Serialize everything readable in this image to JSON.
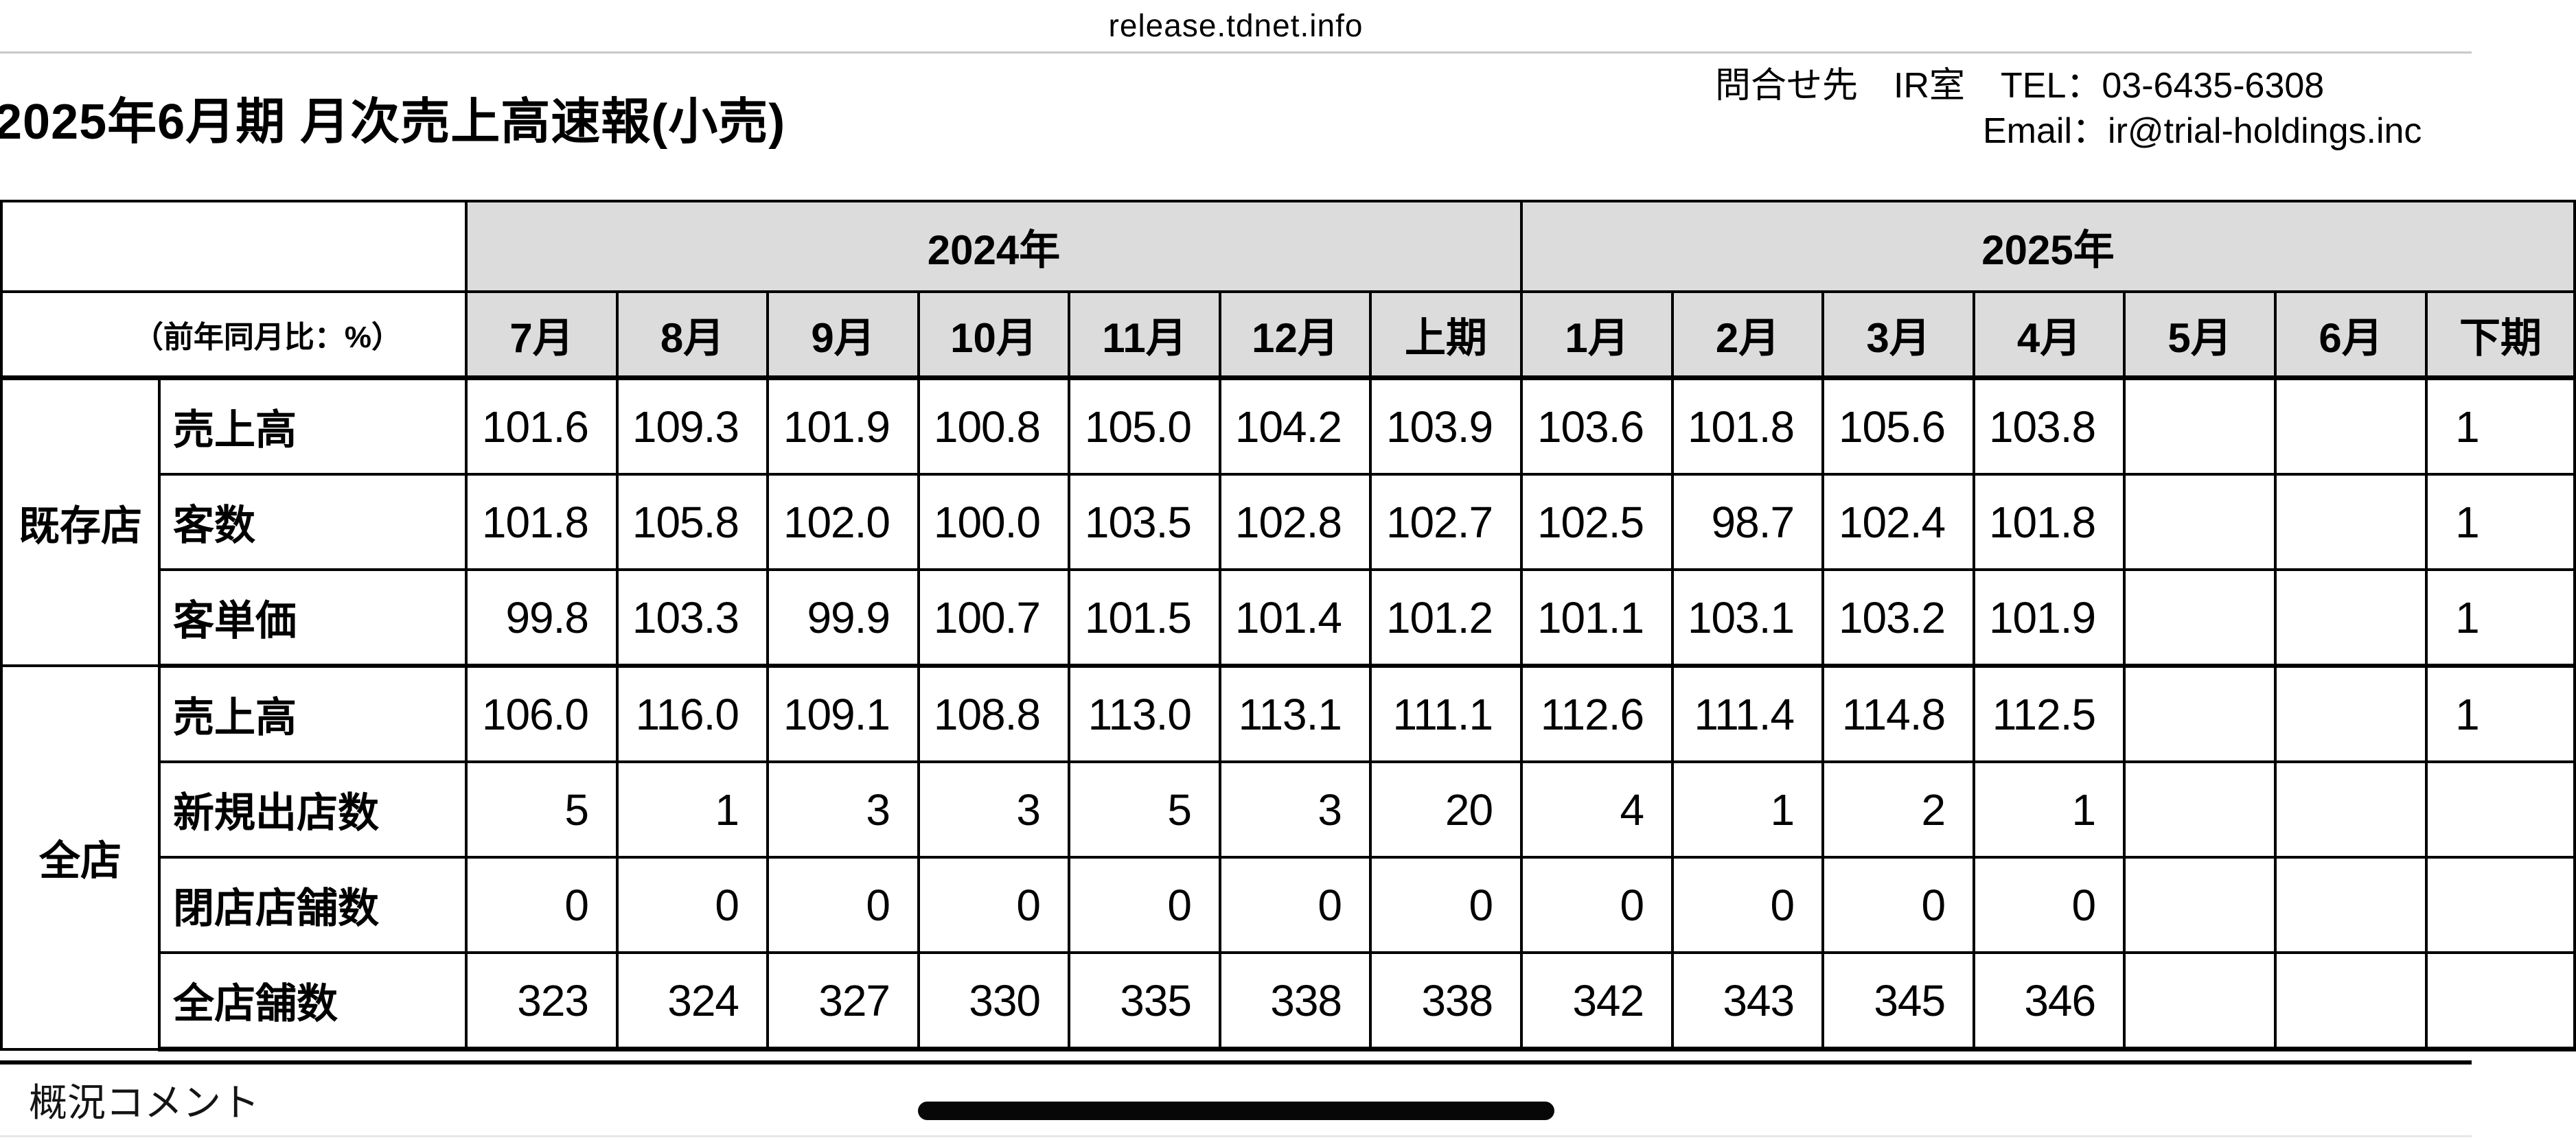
{
  "browser": {
    "url_label": "release.tdnet.info"
  },
  "document": {
    "title": "2025年6月期 月次売上高速報(小売)",
    "contact_line1": "問合せ先　IR室　TEL：03-6435-6308",
    "contact_line2": "Email：ir@trial-holdings.inc",
    "comment_heading": "概況コメント"
  },
  "table": {
    "note_label": "（前年同月比：%）",
    "year_groups": [
      {
        "label": "2024年",
        "span": 7
      },
      {
        "label": "2025年",
        "span": 7
      }
    ],
    "months": [
      "7月",
      "8月",
      "9月",
      "10月",
      "11月",
      "12月",
      "上期",
      "1月",
      "2月",
      "3月",
      "4月",
      "5月",
      "6月",
      "下期"
    ],
    "row_groups": [
      {
        "label": "既存店",
        "rows": [
          {
            "label": "売上高",
            "values": [
              "101.6",
              "109.3",
              "101.9",
              "100.8",
              "105.0",
              "104.2",
              "103.9",
              "103.6",
              "101.8",
              "105.6",
              "103.8",
              "",
              "",
              "1"
            ]
          },
          {
            "label": "客数",
            "values": [
              "101.8",
              "105.8",
              "102.0",
              "100.0",
              "103.5",
              "102.8",
              "102.7",
              "102.5",
              "98.7",
              "102.4",
              "101.8",
              "",
              "",
              "1"
            ]
          },
          {
            "label": "客単価",
            "values": [
              "99.8",
              "103.3",
              "99.9",
              "100.7",
              "101.5",
              "101.4",
              "101.2",
              "101.1",
              "103.1",
              "103.2",
              "101.9",
              "",
              "",
              "1"
            ]
          }
        ]
      },
      {
        "label": "全店",
        "rows": [
          {
            "label": "売上高",
            "values": [
              "106.0",
              "116.0",
              "109.1",
              "108.8",
              "113.0",
              "113.1",
              "111.1",
              "112.6",
              "111.4",
              "114.8",
              "112.5",
              "",
              "",
              "1"
            ]
          },
          {
            "label": "新規出店数",
            "values": [
              "5",
              "1",
              "3",
              "3",
              "5",
              "3",
              "20",
              "4",
              "1",
              "2",
              "1",
              "",
              "",
              ""
            ]
          },
          {
            "label": "閉店店舗数",
            "values": [
              "0",
              "0",
              "0",
              "0",
              "0",
              "0",
              "0",
              "0",
              "0",
              "0",
              "0",
              "",
              "",
              ""
            ]
          },
          {
            "label": "全店舗数",
            "values": [
              "323",
              "324",
              "327",
              "330",
              "335",
              "338",
              "338",
              "342",
              "343",
              "345",
              "346",
              "",
              "",
              ""
            ]
          }
        ]
      }
    ]
  },
  "colors": {
    "header_bg": "#dcdcdc",
    "border": "#000000",
    "divider": "#c8c8ca",
    "faint_line": "#e8e8ea",
    "home_indicator": "#070707"
  }
}
